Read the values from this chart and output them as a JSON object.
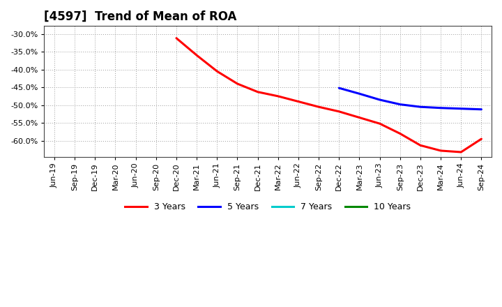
{
  "title": "[4597]  Trend of Mean of ROA",
  "background_color": "#ffffff",
  "plot_bg_color": "#ffffff",
  "grid_color": "#999999",
  "ylim": [
    -0.645,
    -0.278
  ],
  "yticks": [
    -0.3,
    -0.35,
    -0.4,
    -0.45,
    -0.5,
    -0.55,
    -0.6
  ],
  "series": {
    "3yr": {
      "color": "#ff0000",
      "x_indices": [
        6,
        7,
        8,
        9,
        10,
        11,
        12,
        13,
        14,
        15,
        16,
        17,
        18,
        19,
        20,
        21
      ],
      "values": [
        -0.312,
        -0.36,
        -0.405,
        -0.44,
        -0.463,
        -0.475,
        -0.49,
        -0.505,
        -0.518,
        -0.535,
        -0.552,
        -0.58,
        -0.613,
        -0.628,
        -0.632,
        -0.595
      ]
    },
    "5yr": {
      "color": "#0000ff",
      "x_indices": [
        14,
        15,
        16,
        17,
        18,
        19,
        20,
        21
      ],
      "values": [
        -0.452,
        -0.468,
        -0.485,
        -0.498,
        -0.505,
        -0.508,
        -0.51,
        -0.512
      ]
    },
    "7yr": {
      "color": "#00cccc",
      "x_indices": [],
      "values": []
    },
    "10yr": {
      "color": "#008800",
      "x_indices": [],
      "values": []
    }
  },
  "xtick_labels": [
    "Jun-19",
    "Sep-19",
    "Dec-19",
    "Mar-20",
    "Jun-20",
    "Sep-20",
    "Dec-20",
    "Mar-21",
    "Jun-21",
    "Sep-21",
    "Dec-21",
    "Mar-22",
    "Jun-22",
    "Sep-22",
    "Dec-22",
    "Mar-23",
    "Jun-23",
    "Sep-23",
    "Dec-23",
    "Mar-24",
    "Jun-24",
    "Sep-24"
  ],
  "legend_entries": [
    {
      "label": "3 Years",
      "color": "#ff0000"
    },
    {
      "label": "5 Years",
      "color": "#0000ff"
    },
    {
      "label": "7 Years",
      "color": "#00cccc"
    },
    {
      "label": "10 Years",
      "color": "#008800"
    }
  ],
  "title_fontsize": 12,
  "tick_fontsize": 8,
  "legend_fontsize": 9
}
